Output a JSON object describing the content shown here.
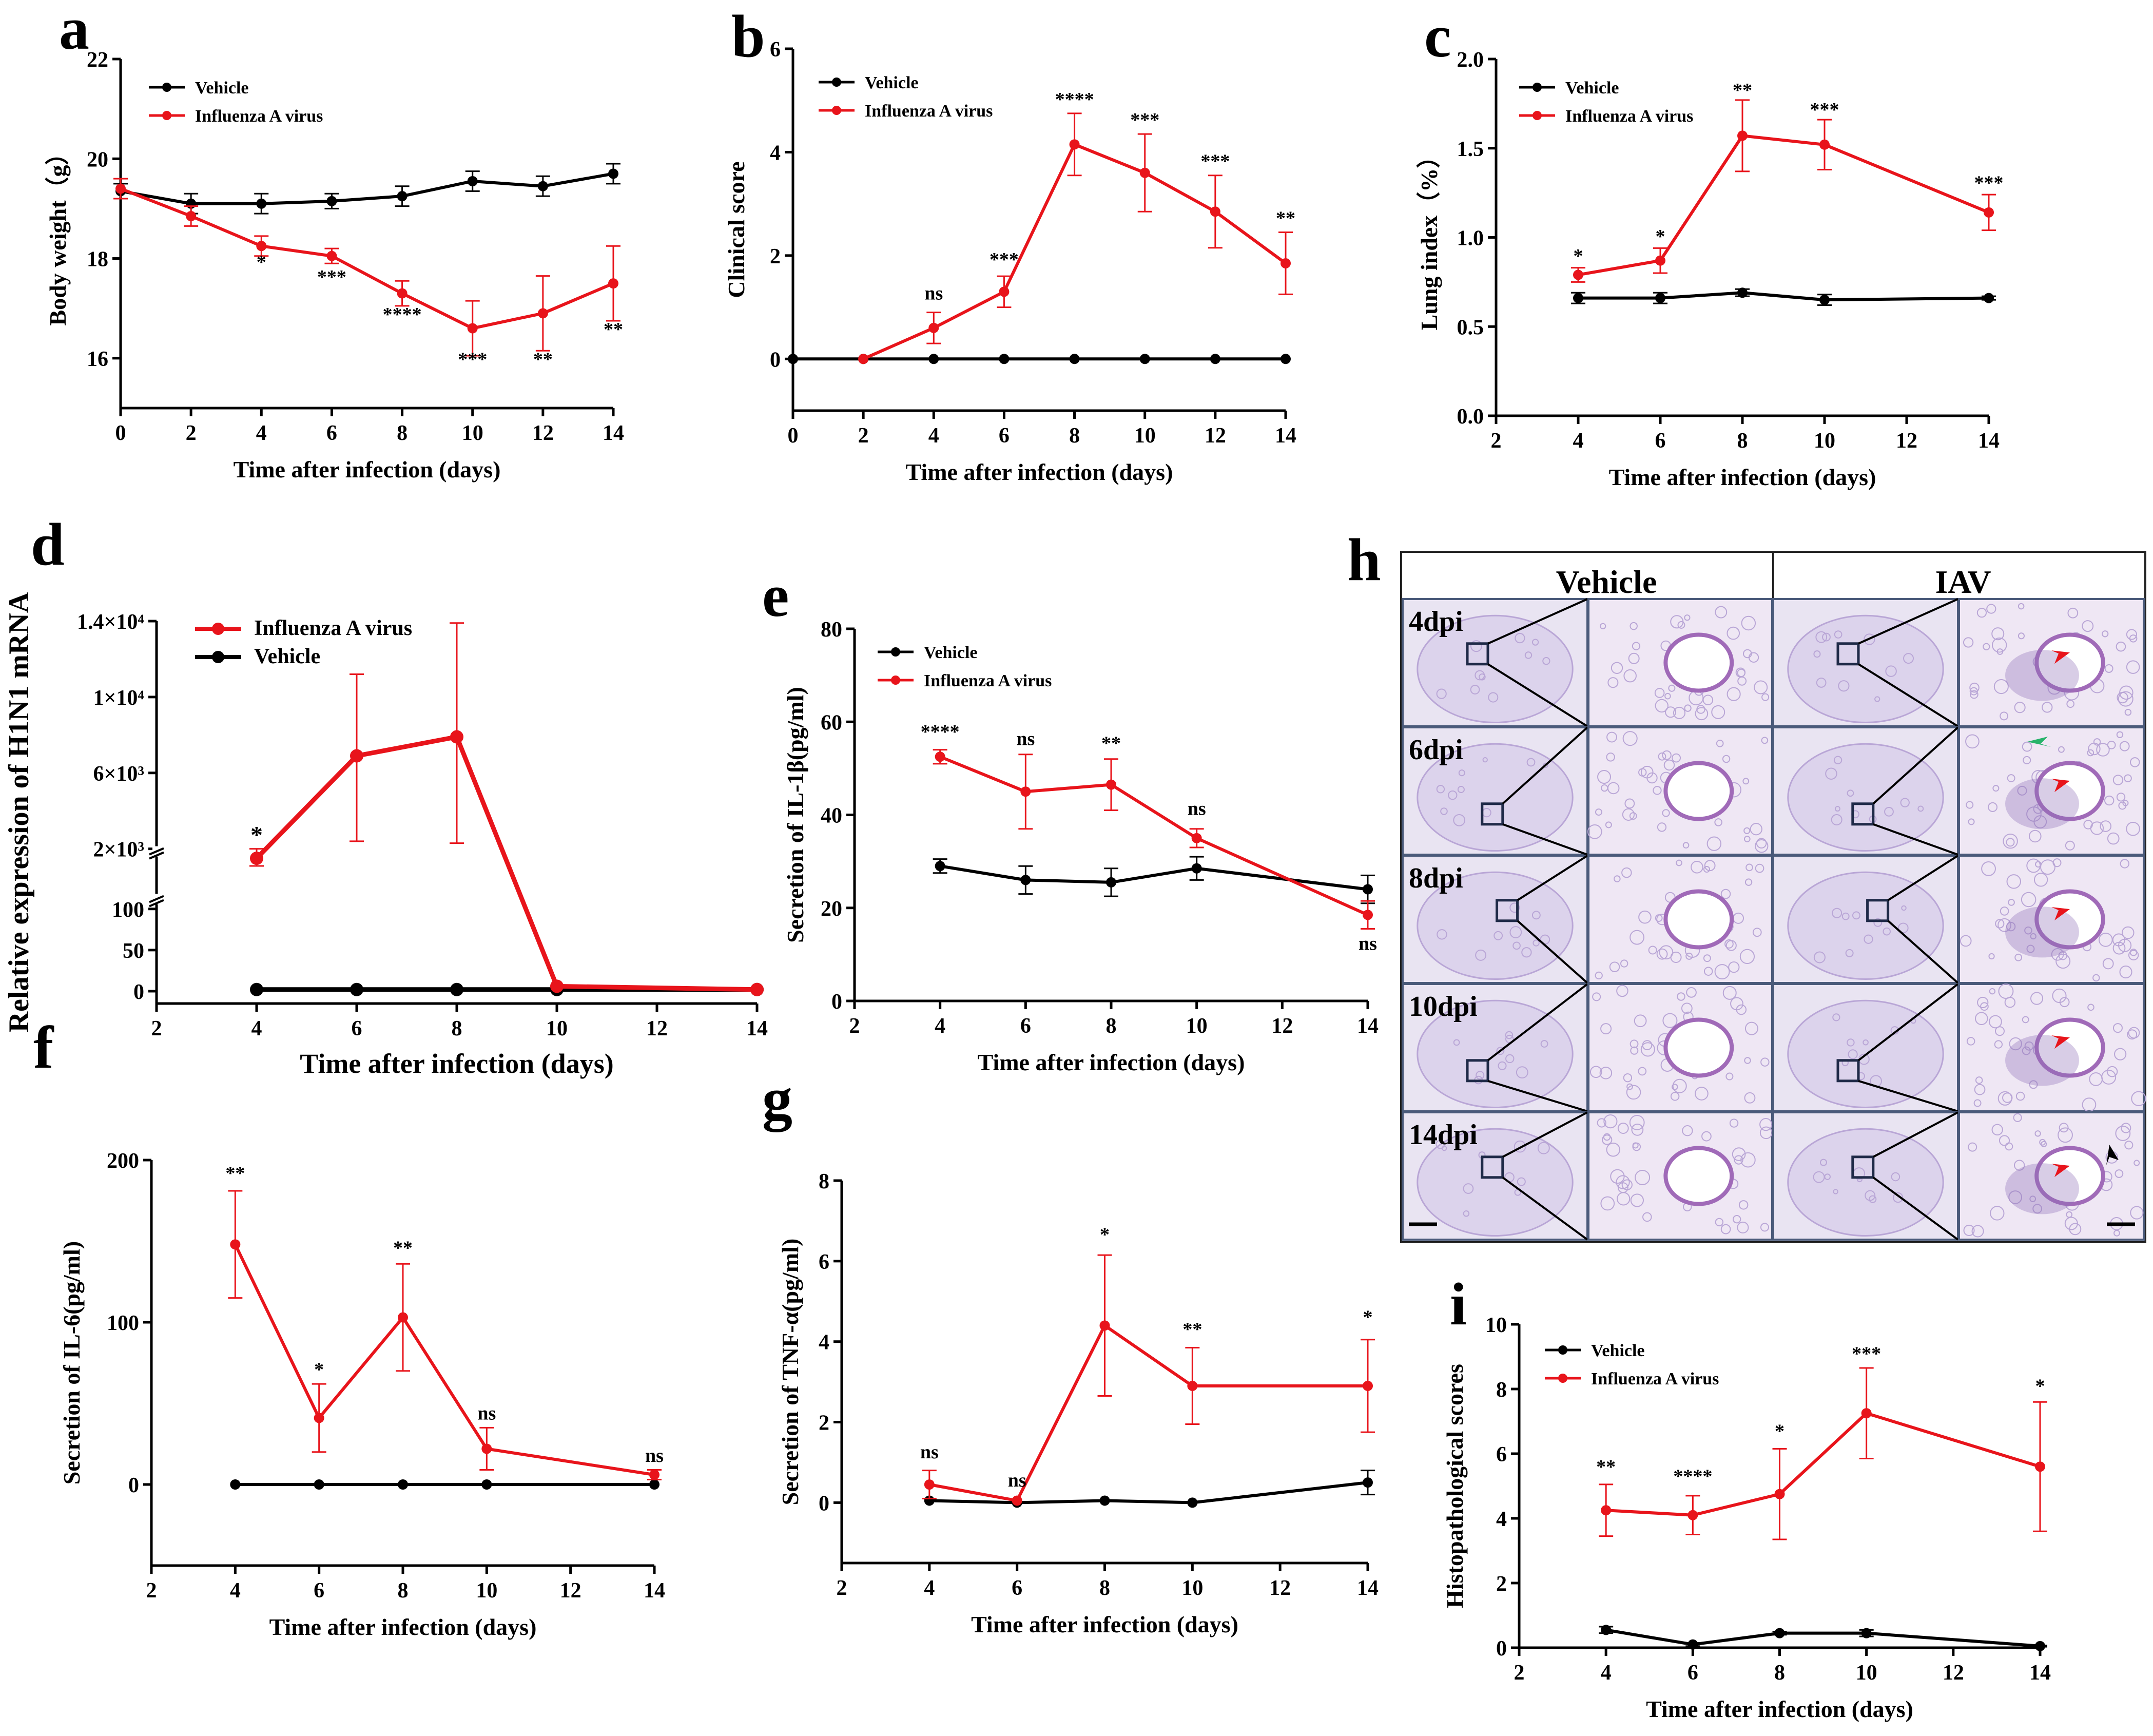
{
  "colors": {
    "vehicle": "#000000",
    "iav": "#e8141b",
    "tissue": "#dcd3ec",
    "tissue_dark": "#b9a6d6",
    "panel_border": "#4a5a7a"
  },
  "chart_data": [
    {
      "panel": "a",
      "type": "line",
      "xlabel": "Time after infection (days)",
      "ylabel": "Body weight（g）",
      "xlim": [
        0,
        14
      ],
      "ylim": [
        15,
        22
      ],
      "xticks": [
        0,
        2,
        4,
        6,
        8,
        10,
        12,
        14
      ],
      "xtick_labels": [
        "0",
        "2",
        "4",
        "6",
        "8",
        "10",
        "12",
        "14"
      ],
      "yticks": [
        16,
        18,
        20,
        22
      ],
      "ytick_labels": [
        "16",
        "18",
        "20",
        "22"
      ],
      "legend": [
        "Vehicle",
        "Influenza A virus"
      ],
      "series": [
        {
          "name": "Vehicle",
          "color": "#000000",
          "x": [
            0,
            2,
            4,
            6,
            8,
            10,
            12,
            14
          ],
          "y": [
            19.35,
            19.1,
            19.1,
            19.15,
            19.25,
            19.55,
            19.45,
            19.7
          ],
          "err": [
            0.15,
            0.2,
            0.2,
            0.15,
            0.2,
            0.2,
            0.2,
            0.2
          ]
        },
        {
          "name": "Influenza A virus",
          "color": "#e8141b",
          "x": [
            0,
            2,
            4,
            6,
            8,
            10,
            12,
            14
          ],
          "y": [
            19.4,
            18.85,
            18.25,
            18.05,
            17.3,
            16.6,
            16.9,
            17.5
          ],
          "err": [
            0.2,
            0.2,
            0.2,
            0.15,
            0.25,
            0.55,
            0.75,
            0.75
          ]
        }
      ],
      "annotations": [
        {
          "x": 4,
          "y": 17.8,
          "text": "*"
        },
        {
          "x": 6,
          "y": 17.5,
          "text": "***"
        },
        {
          "x": 8,
          "y": 16.75,
          "text": "****"
        },
        {
          "x": 10,
          "y": 15.85,
          "text": "***"
        },
        {
          "x": 12,
          "y": 15.85,
          "text": "**"
        },
        {
          "x": 14,
          "y": 16.45,
          "text": "**"
        }
      ]
    },
    {
      "panel": "b",
      "type": "line",
      "xlabel": "Time after infection (days)",
      "ylabel": "Clinical score",
      "xlim": [
        0,
        14
      ],
      "ylim": [
        -1,
        6
      ],
      "xticks": [
        0,
        2,
        4,
        6,
        8,
        10,
        12,
        14
      ],
      "xtick_labels": [
        "0",
        "2",
        "4",
        "6",
        "8",
        "10",
        "12",
        "14"
      ],
      "yticks": [
        0,
        2,
        4,
        6
      ],
      "ytick_labels": [
        "0",
        "2",
        "4",
        "6"
      ],
      "legend": [
        "Vehicle",
        "Influenza A virus"
      ],
      "series": [
        {
          "name": "Vehicle",
          "color": "#000000",
          "x": [
            0,
            2,
            4,
            6,
            8,
            10,
            12,
            14
          ],
          "y": [
            0,
            0,
            0,
            0,
            0,
            0,
            0,
            0
          ],
          "err": [
            0,
            0,
            0,
            0,
            0,
            0,
            0,
            0
          ]
        },
        {
          "name": "Influenza A virus",
          "color": "#e8141b",
          "x": [
            2,
            4,
            6,
            8,
            10,
            12,
            14
          ],
          "y": [
            0,
            0.6,
            1.3,
            4.15,
            3.6,
            2.85,
            1.85
          ],
          "err": [
            0,
            0.3,
            0.3,
            0.6,
            0.75,
            0.7,
            0.6
          ]
        }
      ],
      "annotations": [
        {
          "x": 4,
          "y": 1.15,
          "text": "ns"
        },
        {
          "x": 6,
          "y": 1.8,
          "text": "***"
        },
        {
          "x": 8,
          "y": 4.9,
          "text": "****"
        },
        {
          "x": 10,
          "y": 4.5,
          "text": "***"
        },
        {
          "x": 12,
          "y": 3.7,
          "text": "***"
        },
        {
          "x": 14,
          "y": 2.6,
          "text": "**"
        }
      ]
    },
    {
      "panel": "c",
      "type": "line",
      "xlabel": "Time after infection (days)",
      "ylabel": "Lung index（%）",
      "xlim": [
        2,
        14
      ],
      "ylim": [
        0,
        2
      ],
      "xticks": [
        2,
        4,
        6,
        8,
        10,
        12,
        14
      ],
      "xtick_labels": [
        "2",
        "4",
        "6",
        "8",
        "10",
        "12",
        "14"
      ],
      "yticks": [
        0,
        0.5,
        1.0,
        1.5,
        2.0
      ],
      "ytick_labels": [
        "0.0",
        "0.5",
        "1.0",
        "1.5",
        "2.0"
      ],
      "legend": [
        "Vehicle",
        "Influenza A virus"
      ],
      "series": [
        {
          "name": "Vehicle",
          "color": "#000000",
          "x": [
            4,
            6,
            8,
            10,
            14
          ],
          "y": [
            0.66,
            0.66,
            0.69,
            0.65,
            0.66
          ],
          "err": [
            0.03,
            0.03,
            0.02,
            0.03,
            0.01
          ]
        },
        {
          "name": "Influenza A virus",
          "color": "#e8141b",
          "x": [
            4,
            6,
            8,
            10,
            14
          ],
          "y": [
            0.79,
            0.87,
            1.57,
            1.52,
            1.14
          ],
          "err": [
            0.04,
            0.07,
            0.2,
            0.14,
            0.1
          ]
        }
      ],
      "annotations": [
        {
          "x": 4,
          "y": 0.86,
          "text": "*"
        },
        {
          "x": 6,
          "y": 0.97,
          "text": "*"
        },
        {
          "x": 8,
          "y": 1.79,
          "text": "**"
        },
        {
          "x": 10,
          "y": 1.68,
          "text": "***"
        },
        {
          "x": 14,
          "y": 1.27,
          "text": "***"
        }
      ]
    },
    {
      "panel": "d",
      "type": "line",
      "xlabel": "Time after infection (days)",
      "ylabel": "Relative expression of H1N1 mRNA",
      "xlim": [
        2,
        14
      ],
      "xticks": [
        2,
        4,
        6,
        8,
        10,
        12,
        14
      ],
      "xtick_labels": [
        "2",
        "4",
        "6",
        "8",
        "10",
        "12",
        "14"
      ],
      "ytick_labels": [
        "0",
        "50",
        "100",
        "2×10³",
        "6×10³",
        "1×10⁴",
        "1.4×10⁴"
      ],
      "broken_axis": "display scale: 0–100 linear, 100–1000 compressed, 1000–14000 linear",
      "legend": [
        "Influenza A virus",
        "Vehicle"
      ],
      "series": [
        {
          "name": "Vehicle",
          "color": "#000000",
          "x": [
            4,
            6,
            8,
            10,
            14
          ],
          "y": [
            2,
            2,
            2,
            2,
            2
          ],
          "err": [
            0,
            0,
            0,
            0,
            0
          ]
        },
        {
          "name": "Influenza A virus",
          "color": "#e8141b",
          "x": [
            4,
            6,
            8,
            10,
            14
          ],
          "y": [
            1500,
            6900,
            7900,
            6,
            2
          ],
          "err_up": [
            500,
            4300,
            6000,
            0,
            0
          ],
          "err_down": [
            400,
            4500,
            5600,
            0,
            0
          ]
        }
      ],
      "annotations": [
        {
          "x": 4,
          "y": 2300,
          "text": "*"
        }
      ]
    },
    {
      "panel": "e",
      "type": "line",
      "xlabel": "Time after infection (days)",
      "ylabel": "Secretion of IL-1β(pg/ml)",
      "xlim": [
        2,
        14
      ],
      "ylim": [
        0,
        80
      ],
      "xticks": [
        2,
        4,
        6,
        8,
        10,
        12,
        14
      ],
      "xtick_labels": [
        "2",
        "4",
        "6",
        "8",
        "10",
        "12",
        "14"
      ],
      "yticks": [
        0,
        20,
        40,
        60,
        80
      ],
      "ytick_labels": [
        "0",
        "20",
        "40",
        "60",
        "80"
      ],
      "legend": [
        "Vehicle",
        "Influenza A virus"
      ],
      "series": [
        {
          "name": "Vehicle",
          "color": "#000000",
          "x": [
            4,
            6,
            8,
            10,
            14
          ],
          "y": [
            29,
            26,
            25.5,
            28.5,
            24
          ],
          "err": [
            1.5,
            3,
            3,
            2.5,
            3
          ]
        },
        {
          "name": "Influenza A virus",
          "color": "#e8141b",
          "x": [
            4,
            6,
            8,
            10,
            14
          ],
          "y": [
            52.5,
            45,
            46.5,
            35,
            18.5
          ],
          "err": [
            1.5,
            8,
            5.5,
            2,
            3
          ]
        }
      ],
      "annotations": [
        {
          "x": 4,
          "y": 56.5,
          "text": "****"
        },
        {
          "x": 6,
          "y": 55,
          "text": "ns"
        },
        {
          "x": 8,
          "y": 54,
          "text": "**"
        },
        {
          "x": 10,
          "y": 40,
          "text": "ns"
        },
        {
          "x": 14,
          "y": 11,
          "text": "ns"
        }
      ]
    },
    {
      "panel": "f",
      "type": "line",
      "xlabel": "Time after infection (days)",
      "ylabel": "Secretion of IL-6(pg/ml)",
      "xlim": [
        2,
        14
      ],
      "ylim": [
        -50,
        200
      ],
      "xticks": [
        2,
        4,
        6,
        8,
        10,
        12,
        14
      ],
      "xtick_labels": [
        "2",
        "4",
        "6",
        "8",
        "10",
        "12",
        "14"
      ],
      "yticks": [
        0,
        100,
        200
      ],
      "ytick_labels": [
        "0",
        "100",
        "200"
      ],
      "series": [
        {
          "name": "Vehicle",
          "color": "#000000",
          "x": [
            4,
            6,
            8,
            10,
            14
          ],
          "y": [
            0,
            0,
            0,
            0,
            0
          ],
          "err": [
            0,
            0,
            0,
            0,
            0
          ]
        },
        {
          "name": "Influenza A virus",
          "color": "#e8141b",
          "x": [
            4,
            6,
            8,
            10,
            14
          ],
          "y": [
            148,
            41,
            103,
            22,
            6
          ],
          "err": [
            33,
            21,
            33,
            13,
            3
          ]
        }
      ],
      "annotations": [
        {
          "x": 4,
          "y": 188,
          "text": "**"
        },
        {
          "x": 6,
          "y": 67,
          "text": "*"
        },
        {
          "x": 8,
          "y": 142,
          "text": "**"
        },
        {
          "x": 10,
          "y": 40,
          "text": "ns"
        },
        {
          "x": 14,
          "y": 14,
          "text": "ns"
        }
      ]
    },
    {
      "panel": "g",
      "type": "line",
      "xlabel": "Time after infection (days)",
      "ylabel": "Secretion of TNF-α(pg/ml)",
      "xlim": [
        2,
        14
      ],
      "ylim": [
        -1.5,
        8
      ],
      "xticks": [
        2,
        4,
        6,
        8,
        10,
        12,
        14
      ],
      "xtick_labels": [
        "2",
        "4",
        "6",
        "8",
        "10",
        "12",
        "14"
      ],
      "yticks": [
        0,
        2,
        4,
        6,
        8
      ],
      "ytick_labels": [
        "0",
        "2",
        "4",
        "6",
        "8"
      ],
      "series": [
        {
          "name": "Vehicle",
          "color": "#000000",
          "x": [
            4,
            6,
            8,
            10,
            14
          ],
          "y": [
            0.05,
            0,
            0.05,
            0,
            0.5
          ],
          "err": [
            0,
            0,
            0,
            0,
            0.3
          ]
        },
        {
          "name": "Influenza A virus",
          "color": "#e8141b",
          "x": [
            4,
            6,
            8,
            10,
            14
          ],
          "y": [
            0.45,
            0.05,
            4.4,
            2.9,
            2.9
          ],
          "err": [
            0.35,
            0,
            1.75,
            0.95,
            1.15
          ]
        }
      ],
      "annotations": [
        {
          "x": 4,
          "y": 1.1,
          "text": "ns"
        },
        {
          "x": 6,
          "y": 0.4,
          "text": "ns"
        },
        {
          "x": 8,
          "y": 6.5,
          "text": "*"
        },
        {
          "x": 10,
          "y": 4.15,
          "text": "**"
        },
        {
          "x": 14,
          "y": 4.45,
          "text": "*"
        }
      ]
    },
    {
      "panel": "i",
      "type": "line",
      "xlabel": "Time after infection (days)",
      "ylabel": "Histopathological scores",
      "xlim": [
        2,
        14
      ],
      "ylim": [
        0,
        10
      ],
      "xticks": [
        2,
        4,
        6,
        8,
        10,
        12,
        14
      ],
      "xtick_labels": [
        "2",
        "4",
        "6",
        "8",
        "10",
        "12",
        "14"
      ],
      "yticks": [
        0,
        2,
        4,
        6,
        8,
        10
      ],
      "ytick_labels": [
        "0",
        "2",
        "4",
        "6",
        "8",
        "10"
      ],
      "legend": [
        "Vehicle",
        "Influenza A virus"
      ],
      "series": [
        {
          "name": "Vehicle",
          "color": "#000000",
          "x": [
            4,
            6,
            8,
            10,
            14
          ],
          "y": [
            0.55,
            0.1,
            0.45,
            0.45,
            0.05
          ],
          "err": [
            0.1,
            0.05,
            0.05,
            0.1,
            0.02
          ]
        },
        {
          "name": "Influenza A virus",
          "color": "#e8141b",
          "x": [
            4,
            6,
            8,
            10,
            14
          ],
          "y": [
            4.25,
            4.1,
            4.75,
            7.25,
            5.6
          ],
          "err": [
            0.8,
            0.6,
            1.4,
            1.4,
            2.0
          ]
        }
      ],
      "annotations": [
        {
          "x": 4,
          "y": 5.4,
          "text": "**"
        },
        {
          "x": 6,
          "y": 5.1,
          "text": "****"
        },
        {
          "x": 8,
          "y": 6.5,
          "text": "*"
        },
        {
          "x": 10,
          "y": 8.9,
          "text": "***"
        },
        {
          "x": 14,
          "y": 7.9,
          "text": "*"
        }
      ]
    }
  ],
  "histology": {
    "panel": "h",
    "col_headers": [
      "Vehicle",
      "IAV"
    ],
    "row_labels": [
      "4dpi",
      "6dpi",
      "8dpi",
      "10dpi",
      "14dpi"
    ]
  }
}
